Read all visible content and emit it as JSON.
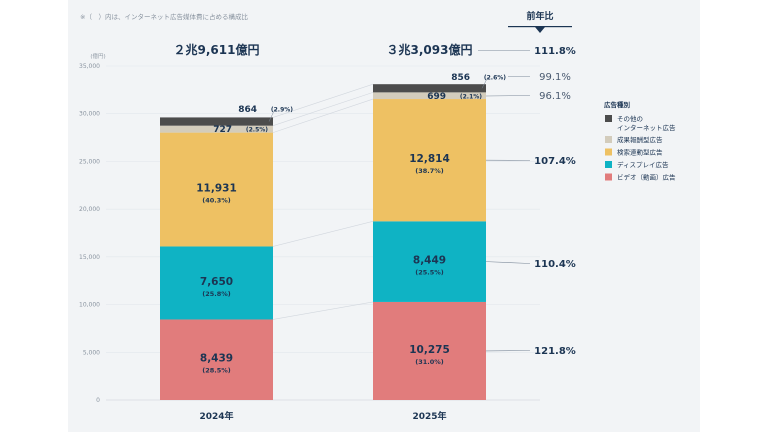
{
  "note": "※（　）内は、インターネット広告媒体費に占める構成比",
  "yunit": "(億円)",
  "yoy_header": "前年比",
  "colors": {
    "video": "#e17c7c",
    "display": "#0fb3c4",
    "search": "#eec163",
    "affiliate": "#d3ccbc",
    "other": "#4c4c4c"
  },
  "chart_data": {
    "type": "bar",
    "stacked": true,
    "categories": [
      "2024年",
      "2025年"
    ],
    "totals": [
      "２兆9,611億円",
      "３兆3,093億円"
    ],
    "total_values": [
      29611,
      33093
    ],
    "ylim": [
      0,
      35000
    ],
    "yticks": [
      "0",
      "5,000",
      "10,000",
      "15,000",
      "20,000",
      "25,000",
      "30,000",
      "35,000"
    ],
    "ytick_values": [
      0,
      5000,
      10000,
      15000,
      20000,
      25000,
      30000,
      35000
    ],
    "legend_title": "広告種別",
    "legend_position": "right",
    "series": [
      {
        "key": "video",
        "name": "ビデオ（動画）広告",
        "values": [
          8439,
          10275
        ],
        "labels": [
          "8,439",
          "10,275"
        ],
        "shares": [
          "(28.5%)",
          "(31.0%)"
        ],
        "yoy": "121.8%"
      },
      {
        "key": "display",
        "name": "ディスプレイ広告",
        "values": [
          7650,
          8449
        ],
        "labels": [
          "7,650",
          "8,449"
        ],
        "shares": [
          "(25.8%)",
          "(25.5%)"
        ],
        "yoy": "110.4%"
      },
      {
        "key": "search",
        "name": "検索連動型広告",
        "values": [
          11931,
          12814
        ],
        "labels": [
          "11,931",
          "12,814"
        ],
        "shares": [
          "(40.3%)",
          "(38.7%)"
        ],
        "yoy": "107.4%"
      },
      {
        "key": "affiliate",
        "name": "成果報酬型広告",
        "values": [
          727,
          699
        ],
        "labels": [
          "727",
          "699"
        ],
        "shares": [
          "(2.5%)",
          "(2.1%)"
        ],
        "yoy": "96.1%"
      },
      {
        "key": "other",
        "name": "その他の\nインターネット広告",
        "values": [
          864,
          856
        ],
        "labels": [
          "864",
          "856"
        ],
        "shares": [
          "(2.9%)",
          "(2.6%)"
        ],
        "yoy": "99.1%"
      }
    ],
    "total_yoy": "111.8%"
  }
}
